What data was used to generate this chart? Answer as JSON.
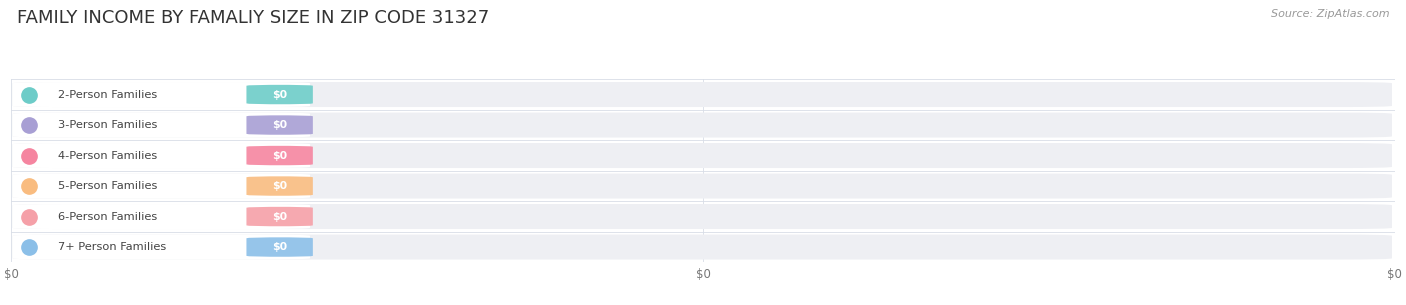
{
  "title": "FAMILY INCOME BY FAMALIY SIZE IN ZIP CODE 31327",
  "source": "Source: ZipAtlas.com",
  "categories": [
    "2-Person Families",
    "3-Person Families",
    "4-Person Families",
    "5-Person Families",
    "6-Person Families",
    "7+ Person Families"
  ],
  "values": [
    0,
    0,
    0,
    0,
    0,
    0
  ],
  "bar_colors": [
    "#6dccc8",
    "#a89fd4",
    "#f585a0",
    "#f9bc80",
    "#f5a0a8",
    "#8bbfe8"
  ],
  "label_text": [
    "$0",
    "$0",
    "$0",
    "$0",
    "$0",
    "$0"
  ],
  "x_tick_positions": [
    0,
    0.5,
    1.0
  ],
  "x_tick_labels": [
    "$0",
    "$0",
    "$0"
  ],
  "background_color": "#ffffff",
  "title_fontsize": 13,
  "source_fontsize": 8
}
